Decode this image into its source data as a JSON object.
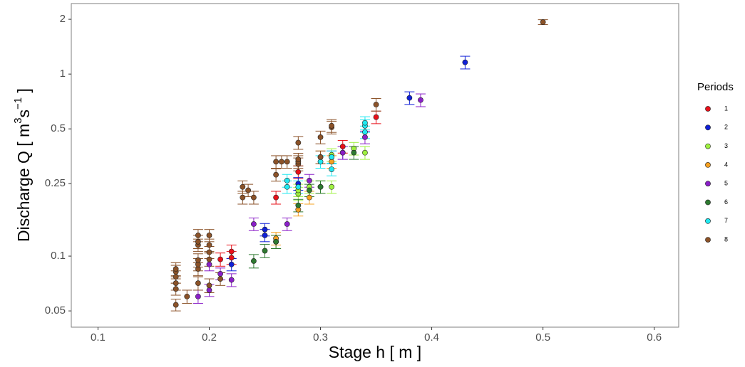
{
  "chart_data": {
    "type": "scatter",
    "xlabel": "Stage h [ m ]",
    "ylabel_parts": [
      "Discharge Q [ m",
      "3",
      "s",
      "−1",
      " ]"
    ],
    "legend_title": "Periods",
    "legend_position": "right",
    "log_y": true,
    "xlim": [
      0.076,
      0.622
    ],
    "ylim": [
      0.0407,
      2.44
    ],
    "xticks": [
      0.1,
      0.2,
      0.3,
      0.4,
      0.5,
      0.6
    ],
    "yticks": [
      0.05,
      0.1,
      0.25,
      0.5,
      1,
      2
    ],
    "series": [
      {
        "name": "1",
        "color": "#e8101a",
        "x": [
          0.21,
          0.22,
          0.22,
          0.26,
          0.28,
          0.32,
          0.35
        ],
        "values": [
          0.096,
          0.106,
          0.098,
          0.21,
          0.29,
          0.4,
          0.58
        ],
        "errors": [
          0.008,
          0.009,
          0.008,
          0.017,
          0.023,
          0.032,
          0.046
        ]
      },
      {
        "name": "2",
        "color": "#1020d8",
        "x": [
          0.22,
          0.25,
          0.25,
          0.28,
          0.31,
          0.32,
          0.38,
          0.43
        ],
        "values": [
          0.09,
          0.14,
          0.13,
          0.25,
          0.35,
          0.37,
          0.74,
          1.16
        ],
        "errors": [
          0.007,
          0.011,
          0.01,
          0.02,
          0.028,
          0.03,
          0.059,
          0.093
        ]
      },
      {
        "name": "3",
        "color": "#9ef040",
        "x": [
          0.28,
          0.28,
          0.29,
          0.3,
          0.31,
          0.31,
          0.33,
          0.34
        ],
        "values": [
          0.22,
          0.23,
          0.24,
          0.24,
          0.24,
          0.36,
          0.39,
          0.37
        ],
        "errors": [
          0.018,
          0.018,
          0.019,
          0.019,
          0.019,
          0.029,
          0.031,
          0.03
        ]
      },
      {
        "name": "4",
        "color": "#f5a020",
        "x": [
          0.26,
          0.26,
          0.28,
          0.29,
          0.3,
          0.31
        ],
        "values": [
          0.12,
          0.125,
          0.18,
          0.21,
          0.35,
          0.33
        ],
        "errors": [
          0.01,
          0.01,
          0.014,
          0.017,
          0.028,
          0.026
        ]
      },
      {
        "name": "5",
        "color": "#8a1fc8",
        "x": [
          0.19,
          0.2,
          0.2,
          0.21,
          0.22,
          0.24,
          0.27,
          0.29,
          0.32,
          0.34,
          0.39
        ],
        "values": [
          0.06,
          0.065,
          0.09,
          0.08,
          0.074,
          0.15,
          0.15,
          0.26,
          0.37,
          0.45,
          0.72
        ],
        "errors": [
          0.005,
          0.005,
          0.007,
          0.006,
          0.006,
          0.012,
          0.012,
          0.021,
          0.03,
          0.036,
          0.058
        ]
      },
      {
        "name": "6",
        "color": "#2e7a30",
        "x": [
          0.24,
          0.25,
          0.26,
          0.28,
          0.29,
          0.3,
          0.33
        ],
        "values": [
          0.094,
          0.107,
          0.12,
          0.19,
          0.23,
          0.24,
          0.37
        ],
        "errors": [
          0.008,
          0.009,
          0.01,
          0.015,
          0.018,
          0.019,
          0.03
        ]
      },
      {
        "name": "7",
        "color": "#20e8f0",
        "x": [
          0.27,
          0.27,
          0.28,
          0.3,
          0.31,
          0.31,
          0.34,
          0.34,
          0.34
        ],
        "values": [
          0.26,
          0.24,
          0.24,
          0.33,
          0.3,
          0.35,
          0.48,
          0.52,
          0.54
        ],
        "errors": [
          0.021,
          0.019,
          0.019,
          0.026,
          0.024,
          0.028,
          0.038,
          0.042,
          0.043
        ]
      },
      {
        "name": "8",
        "color": "#8b5228",
        "x": [
          0.17,
          0.17,
          0.17,
          0.17,
          0.17,
          0.17,
          0.18,
          0.19,
          0.19,
          0.19,
          0.19,
          0.19,
          0.19,
          0.19,
          0.2,
          0.2,
          0.2,
          0.2,
          0.2,
          0.21,
          0.23,
          0.23,
          0.235,
          0.24,
          0.26,
          0.26,
          0.265,
          0.27,
          0.28,
          0.28,
          0.28,
          0.28,
          0.3,
          0.3,
          0.31,
          0.31,
          0.35,
          0.5
        ],
        "values": [
          0.054,
          0.066,
          0.071,
          0.077,
          0.082,
          0.085,
          0.06,
          0.071,
          0.085,
          0.09,
          0.095,
          0.115,
          0.12,
          0.13,
          0.069,
          0.096,
          0.105,
          0.115,
          0.13,
          0.075,
          0.21,
          0.24,
          0.23,
          0.21,
          0.28,
          0.33,
          0.33,
          0.33,
          0.32,
          0.33,
          0.34,
          0.42,
          0.45,
          0.35,
          0.51,
          0.52,
          0.68,
          1.93
        ],
        "errors": [
          0.004,
          0.005,
          0.006,
          0.006,
          0.007,
          0.007,
          0.005,
          0.006,
          0.007,
          0.007,
          0.008,
          0.009,
          0.01,
          0.01,
          0.006,
          0.008,
          0.008,
          0.009,
          0.01,
          0.006,
          0.017,
          0.019,
          0.018,
          0.017,
          0.022,
          0.026,
          0.026,
          0.026,
          0.026,
          0.026,
          0.027,
          0.034,
          0.036,
          0.028,
          0.041,
          0.042,
          0.054,
          0.06
        ]
      }
    ]
  }
}
